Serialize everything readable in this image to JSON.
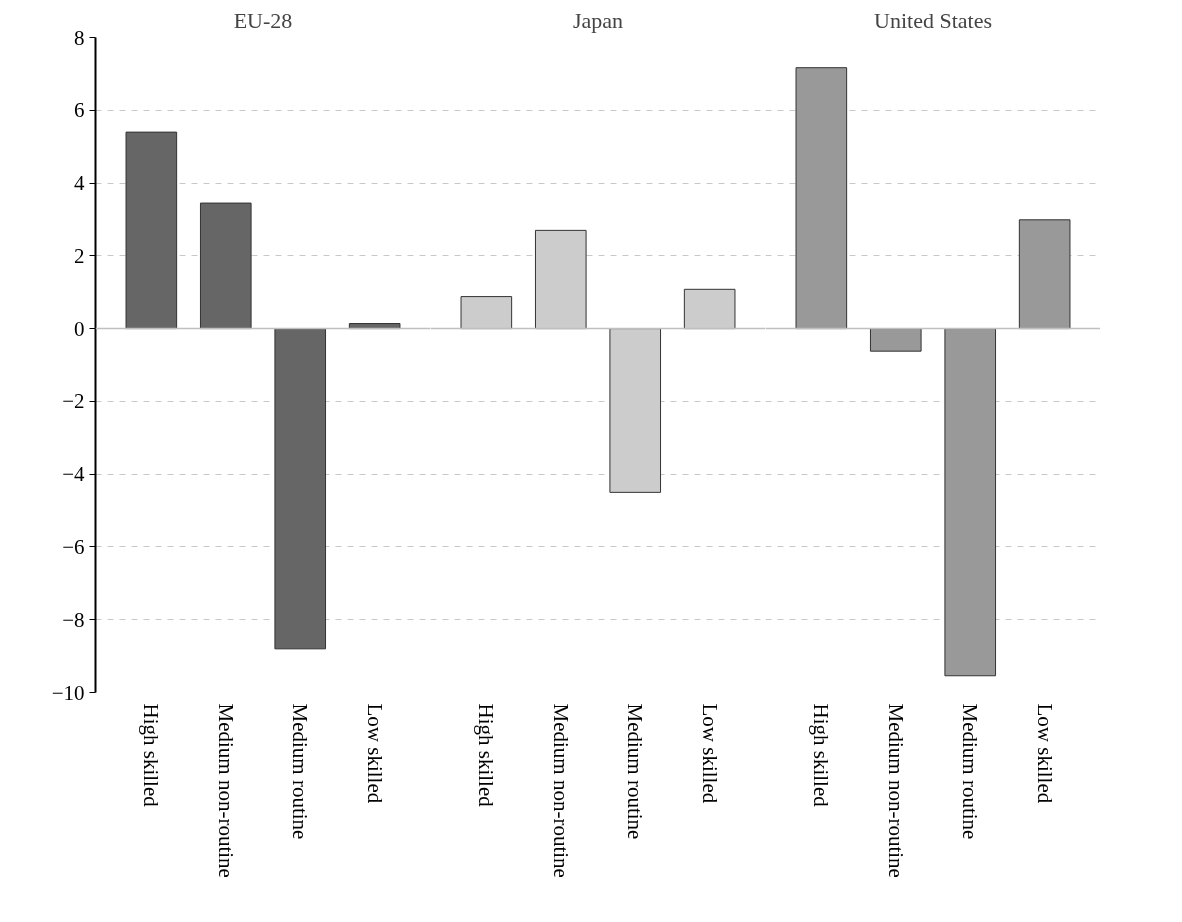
{
  "chart_data": [
    {
      "type": "bar",
      "title": "EU-28",
      "categories": [
        "High skilled",
        "Medium non-routine",
        "Medium routine",
        "Low skilled"
      ],
      "values": [
        5.4,
        3.45,
        -8.8,
        0.14
      ],
      "color": "#666666",
      "ylim": [
        -10,
        8
      ],
      "yticks": [
        -10,
        -8,
        -6,
        -4,
        -2,
        0,
        2,
        4,
        6,
        8
      ],
      "grid": "y",
      "ref_lines": [
        {
          "axis": "y",
          "value": 0,
          "color": "#bfbfbf"
        }
      ]
    },
    {
      "type": "bar",
      "title": "Japan",
      "categories": [
        "High skilled",
        "Medium non-routine",
        "Medium routine",
        "Low skilled"
      ],
      "values": [
        0.88,
        2.7,
        -4.5,
        1.08
      ],
      "color": "#cccccc",
      "ylim": [
        -10,
        8
      ],
      "yticks": [
        -10,
        -8,
        -6,
        -4,
        -2,
        0,
        2,
        4,
        6,
        8
      ],
      "grid": "y",
      "tick_labels": "x",
      "ref_lines": [
        {
          "axis": "y",
          "value": 0,
          "color": "#bfbfbf"
        }
      ]
    },
    {
      "type": "bar",
      "title": "United States",
      "categories": [
        "High skilled",
        "Medium non-routine",
        "Medium routine",
        "Low skilled"
      ],
      "values": [
        7.17,
        -0.62,
        -9.54,
        2.99
      ],
      "color": "#999999",
      "ylim": [
        -10,
        8
      ],
      "yticks": [
        -10,
        -8,
        -6,
        -4,
        -2,
        0,
        2,
        4,
        6,
        8
      ],
      "grid": "y",
      "tick_labels": "x",
      "ref_lines": [
        {
          "axis": "y",
          "value": 0,
          "color": "#bfbfbf"
        }
      ]
    }
  ]
}
